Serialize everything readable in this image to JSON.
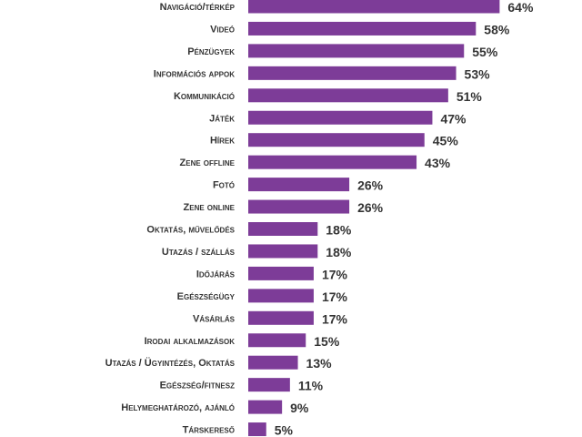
{
  "chart_data": {
    "type": "bar",
    "orientation": "horizontal",
    "bar_color": "#7d3c98",
    "title": "",
    "xlabel": "",
    "ylabel": "",
    "xlim": [
      0,
      70
    ],
    "grid": false,
    "legend": "none",
    "categories": [
      "Navigáció/térkép",
      "Videó",
      "Pénzügyek",
      "Információs appok",
      "Kommunikáció",
      "Játék",
      "Hírek",
      "Zene offline",
      "Fotó",
      "Zene online",
      "Oktatás, művelődés",
      "Utazás / szállás",
      "Időjárás",
      "Egészségügy",
      "Vásárlás",
      "Irodai alkalmazások",
      "Utazás / Ügyintézés, Oktatás",
      "Egészség/fitnesz",
      "Helymeghatározó, ajánló",
      "Társkereső"
    ],
    "values": [
      64,
      58,
      55,
      53,
      51,
      47,
      45,
      43,
      26,
      26,
      18,
      18,
      17,
      17,
      17,
      15,
      13,
      11,
      9,
      5
    ],
    "value_labels": [
      "64%",
      "58%",
      "55%",
      "53%",
      "51%",
      "47%",
      "45%",
      "43%",
      "26%",
      "26%",
      "18%",
      "18%",
      "17%",
      "17%",
      "17%",
      "15%",
      "13%",
      "11%",
      "9%",
      "5%"
    ]
  }
}
